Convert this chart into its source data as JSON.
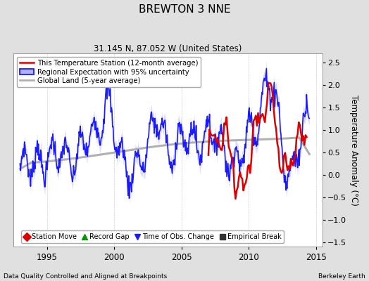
{
  "title": "BREWTON 3 NNE",
  "subtitle": "31.145 N, 87.052 W (United States)",
  "ylabel": "Temperature Anomaly (°C)",
  "xlabel_left": "Data Quality Controlled and Aligned at Breakpoints",
  "xlabel_right": "Berkeley Earth",
  "ylim": [
    -1.6,
    2.7
  ],
  "xlim": [
    1992.5,
    2015.5
  ],
  "xticks": [
    1995,
    2000,
    2005,
    2010,
    2015
  ],
  "yticks": [
    -1.5,
    -1.0,
    -0.5,
    0.0,
    0.5,
    1.0,
    1.5,
    2.0,
    2.5
  ],
  "bg_color": "#e0e0e0",
  "plot_bg_color": "#ffffff",
  "grid_color": "#c8c8c8",
  "regional_line_color": "#1a1aff",
  "regional_fill_color": "#b0b0ff",
  "station_line_color": "#dd0000",
  "global_line_color": "#b0b0b0",
  "legend1_items": [
    {
      "label": "This Temperature Station (12-month average)",
      "color": "#dd0000",
      "lw": 1.8
    },
    {
      "label": "Regional Expectation with 95% uncertainty",
      "color": "#1a1aff",
      "lw": 1.5
    },
    {
      "label": "Global Land (5-year average)",
      "color": "#b0b0b0",
      "lw": 2.0
    }
  ],
  "legend2_items": [
    {
      "label": "Station Move",
      "marker": "D",
      "color": "#dd0000"
    },
    {
      "label": "Record Gap",
      "marker": "^",
      "color": "#009900"
    },
    {
      "label": "Time of Obs. Change",
      "marker": "v",
      "color": "#1a1aff"
    },
    {
      "label": "Empirical Break",
      "marker": "s",
      "color": "#333333"
    }
  ]
}
